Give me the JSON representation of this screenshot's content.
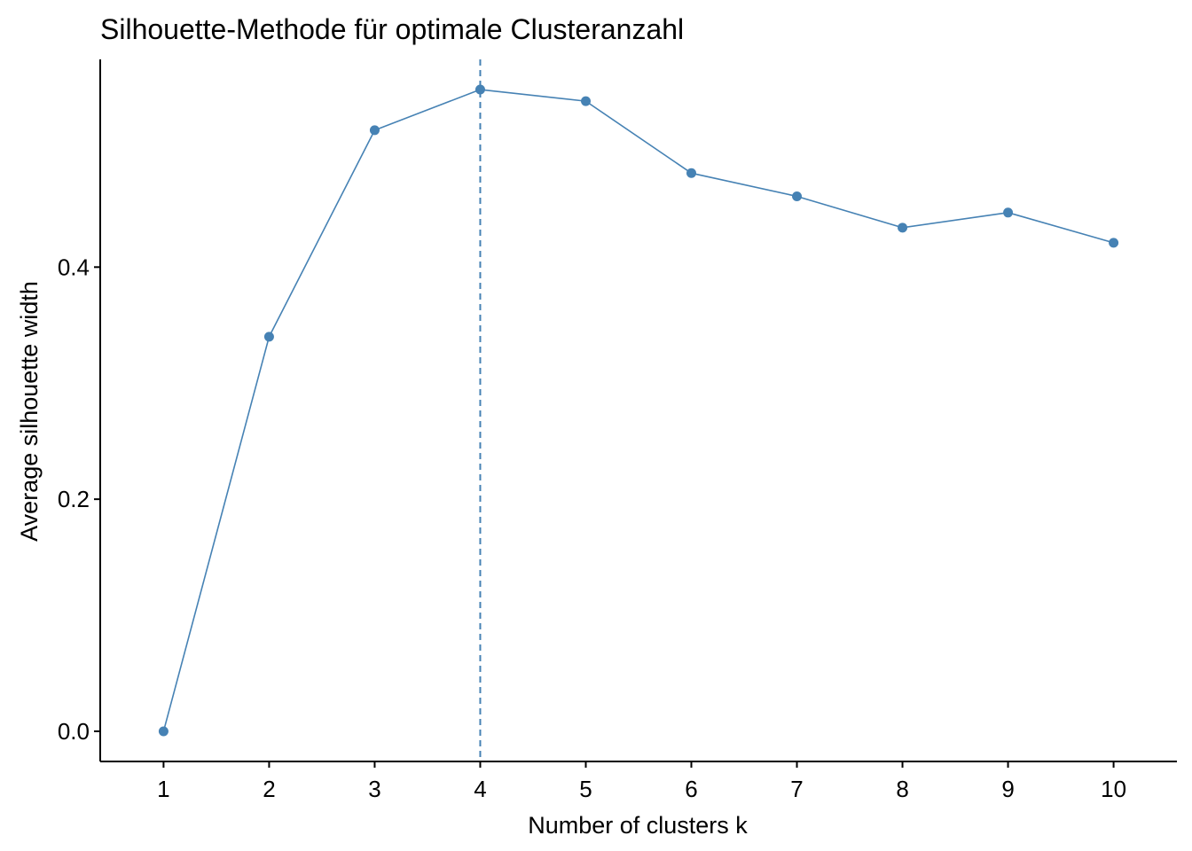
{
  "chart_data": {
    "type": "line",
    "title": "Silhouette-Methode für optimale Clusteranzahl",
    "xlabel": "Number of clusters k",
    "ylabel": "Average silhouette width",
    "x": [
      1,
      2,
      3,
      4,
      5,
      6,
      7,
      8,
      9,
      10
    ],
    "x_tick_labels": [
      "1",
      "2",
      "3",
      "4",
      "5",
      "6",
      "7",
      "8",
      "9",
      "10"
    ],
    "y_ticks": [
      0.0,
      0.2,
      0.4
    ],
    "y_tick_labels": [
      "0.0",
      "0.2",
      "0.4"
    ],
    "xlim": [
      0.4,
      10.6
    ],
    "ylim": [
      -0.026,
      0.579
    ],
    "series": [
      {
        "values": [
          0.0,
          0.34,
          0.518,
          0.553,
          0.543,
          0.481,
          0.461,
          0.434,
          0.447,
          0.421
        ],
        "color": "#4682B4"
      }
    ],
    "optimal_k": 4,
    "vline_color": "#4682B4",
    "grid": false,
    "legend": "none"
  }
}
